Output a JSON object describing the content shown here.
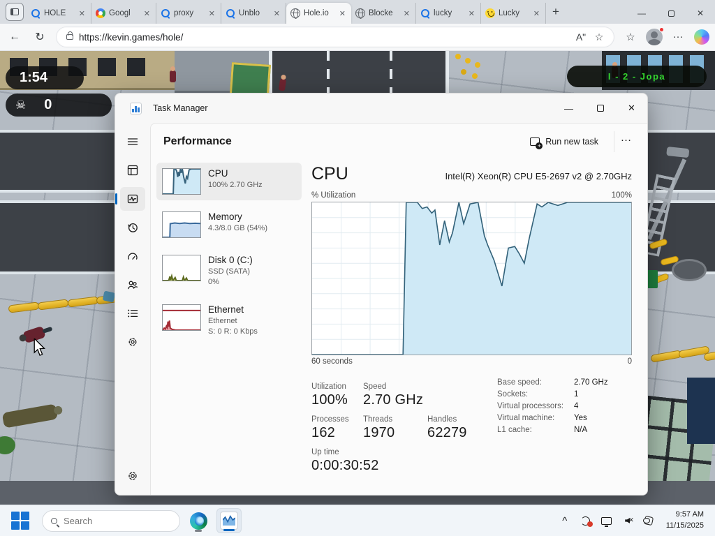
{
  "browser": {
    "tabs": [
      {
        "icon": "search",
        "label": "HOLE",
        "active": false
      },
      {
        "icon": "google",
        "label": "Googl",
        "active": false
      },
      {
        "icon": "search",
        "label": "proxy",
        "active": false
      },
      {
        "icon": "search",
        "label": "Unblo",
        "active": false
      },
      {
        "icon": "globe",
        "label": "Hole.io",
        "active": true
      },
      {
        "icon": "globe",
        "label": "Blocke",
        "active": false
      },
      {
        "icon": "search",
        "label": "lucky",
        "active": false
      },
      {
        "icon": "smiley",
        "label": "Lucky",
        "active": false
      }
    ],
    "url": "https://kevin.games/hole/"
  },
  "glyphs": {
    "back": "←",
    "refresh": "↻",
    "plus": "+",
    "close": "✕",
    "minimize": "—",
    "ellipsis": "…",
    "star": "☆",
    "read_aloud": "Aʺ",
    "chevron_up": "^",
    "skull": "☠"
  },
  "game": {
    "timer": "1:54",
    "score": "0",
    "leaderboard": "I - 2 - Jopa"
  },
  "task_manager": {
    "title": "Task Manager",
    "page_title": "Performance",
    "run_new_task_label": "Run new task",
    "accent_color": "#0067c0",
    "sidebar_icons": [
      "menu",
      "processes",
      "performance",
      "app-history",
      "startup-apps",
      "users",
      "details",
      "services"
    ],
    "settings_icon": "settings",
    "perf_items": [
      {
        "name": "CPU",
        "lines": [
          "100% 2.70 GHz"
        ],
        "selected": true,
        "stroke": "#38637c",
        "fill": "#cfe9f6",
        "spark": [
          [
            0,
            0
          ],
          [
            28,
            0
          ],
          [
            30,
            100
          ],
          [
            34,
            100
          ],
          [
            37,
            92
          ],
          [
            40,
            68
          ],
          [
            42,
            88
          ],
          [
            44,
            72
          ],
          [
            47,
            100
          ],
          [
            49,
            84
          ],
          [
            52,
            100
          ],
          [
            56,
            66
          ],
          [
            60,
            42
          ],
          [
            63,
            70
          ],
          [
            66,
            62
          ],
          [
            70,
            96
          ],
          [
            76,
            100
          ],
          [
            100,
            100
          ]
        ]
      },
      {
        "name": "Memory",
        "lines": [
          "4.3/8.0 GB (54%)"
        ],
        "selected": false,
        "stroke": "#3a6a9c",
        "fill": "#c8dcf2",
        "spark": [
          [
            0,
            0
          ],
          [
            19,
            0
          ],
          [
            20,
            54
          ],
          [
            32,
            57
          ],
          [
            45,
            55
          ],
          [
            58,
            57
          ],
          [
            72,
            55
          ],
          [
            86,
            56
          ],
          [
            100,
            55
          ]
        ]
      },
      {
        "name": "Disk 0 (C:)",
        "lines": [
          "SSD (SATA)",
          "0%"
        ],
        "selected": false,
        "stroke": "#5d6b1f",
        "fill": "#cdd36e",
        "spark": [
          [
            0,
            0
          ],
          [
            16,
            0
          ],
          [
            19,
            16
          ],
          [
            21,
            2
          ],
          [
            24,
            18
          ],
          [
            27,
            0
          ],
          [
            33,
            12
          ],
          [
            36,
            0
          ],
          [
            52,
            0
          ],
          [
            55,
            14
          ],
          [
            58,
            0
          ],
          [
            63,
            10
          ],
          [
            66,
            0
          ],
          [
            100,
            0
          ]
        ]
      },
      {
        "name": "Ethernet",
        "lines": [
          "Ethernet",
          "S: 0 R: 0 Kbps"
        ],
        "selected": false,
        "stroke": "#a42b35",
        "fill": "#e4a2a8",
        "topline": 78,
        "spark": [
          [
            0,
            0
          ],
          [
            4,
            8
          ],
          [
            7,
            4
          ],
          [
            10,
            16
          ],
          [
            12,
            10
          ],
          [
            14,
            34
          ],
          [
            16,
            14
          ],
          [
            18,
            38
          ],
          [
            20,
            8
          ],
          [
            24,
            4
          ],
          [
            28,
            2
          ],
          [
            34,
            0
          ],
          [
            100,
            0
          ]
        ]
      }
    ],
    "cpu": {
      "heading": "CPU",
      "subtitle": "Intel(R) Xeon(R) CPU E5-2697 v2 @ 2.70GHz",
      "axis_top_left": "% Utilization",
      "axis_top_right": "100%",
      "axis_bottom_left": "60 seconds",
      "axis_bottom_right": "0",
      "stats": {
        "utilization": {
          "label": "Utilization",
          "value": "100%"
        },
        "speed": {
          "label": "Speed",
          "value": "2.70 GHz"
        },
        "processes": {
          "label": "Processes",
          "value": "162"
        },
        "threads": {
          "label": "Threads",
          "value": "1970"
        },
        "handles": {
          "label": "Handles",
          "value": "62279"
        },
        "uptime": {
          "label": "Up time",
          "value": "0:00:30:52"
        }
      },
      "details": [
        {
          "label": "Base speed:",
          "value": "2.70 GHz"
        },
        {
          "label": "Sockets:",
          "value": "1"
        },
        {
          "label": "Virtual processors:",
          "value": "4"
        },
        {
          "label": "Virtual machine:",
          "value": "Yes"
        },
        {
          "label": "L1 cache:",
          "value": "N/A"
        }
      ]
    }
  },
  "chart_data": {
    "type": "area",
    "title": "CPU % Utilization over 60 seconds",
    "ylabel": "% Utilization",
    "ylim": [
      0,
      100
    ],
    "x_axis": {
      "left_label": "60 seconds",
      "right_label": "0"
    },
    "grid": true,
    "line_color": "#33627a",
    "fill_color": "#cfe9f6",
    "points": [
      [
        0,
        0
      ],
      [
        28.5,
        0
      ],
      [
        29.5,
        100
      ],
      [
        33,
        100
      ],
      [
        34.5,
        96
      ],
      [
        36,
        97
      ],
      [
        37.5,
        93
      ],
      [
        38.5,
        95
      ],
      [
        40,
        72
      ],
      [
        41.5,
        88
      ],
      [
        43,
        74
      ],
      [
        44,
        80
      ],
      [
        46,
        100
      ],
      [
        47.5,
        86
      ],
      [
        49.5,
        99
      ],
      [
        52,
        100
      ],
      [
        54,
        78
      ],
      [
        55,
        72
      ],
      [
        57,
        62
      ],
      [
        59.5,
        45
      ],
      [
        61.5,
        70
      ],
      [
        63.5,
        71
      ],
      [
        65,
        66
      ],
      [
        66.5,
        60
      ],
      [
        68,
        76
      ],
      [
        70.5,
        99
      ],
      [
        72,
        97
      ],
      [
        74,
        100
      ],
      [
        77,
        98
      ],
      [
        80,
        100
      ],
      [
        100,
        100
      ]
    ]
  },
  "taskbar": {
    "search_placeholder": "Search",
    "time": "9:57 AM",
    "date": "11/15/2025"
  }
}
